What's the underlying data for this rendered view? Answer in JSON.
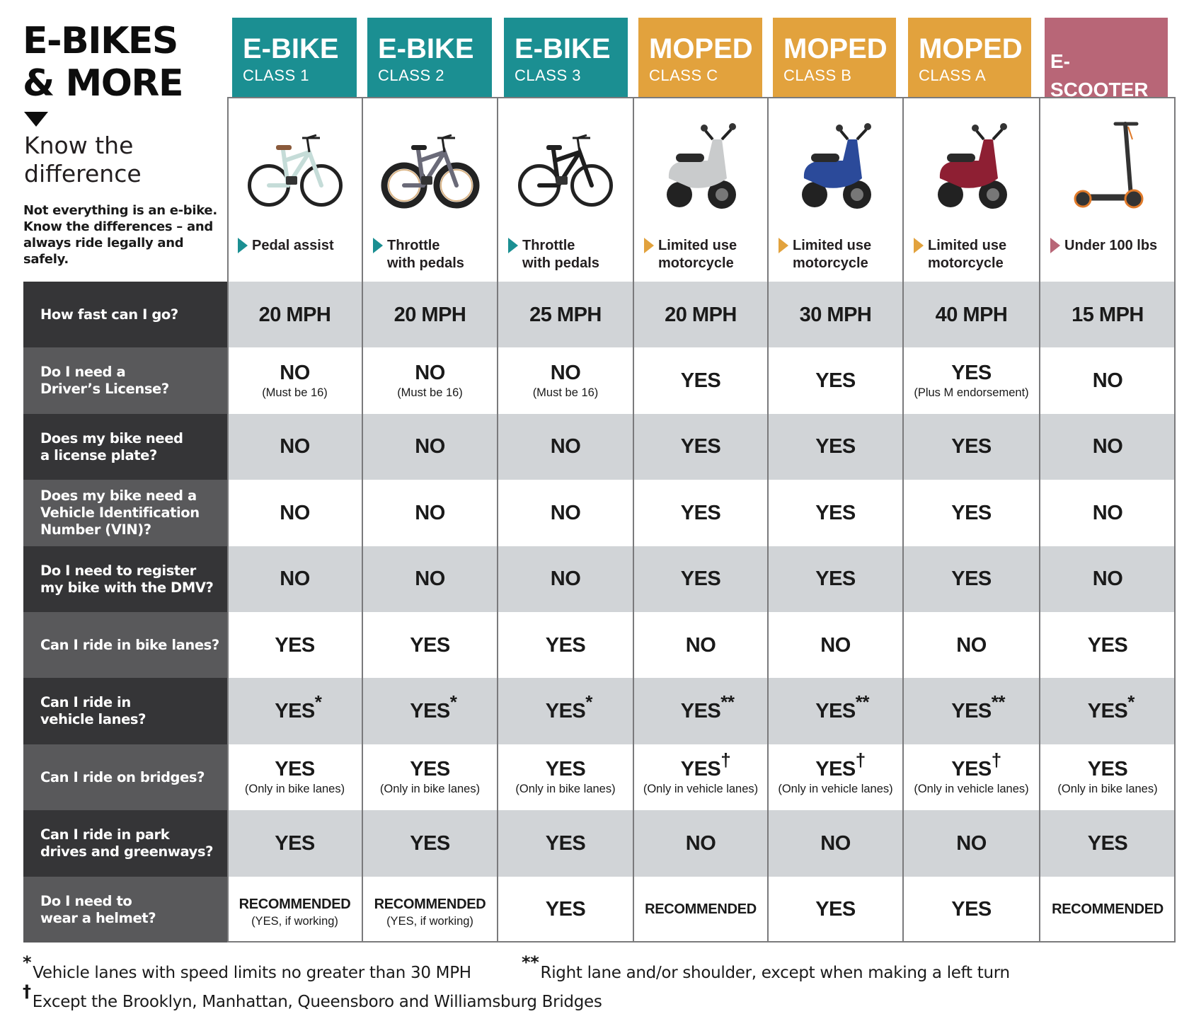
{
  "header": {
    "title_line1": "E-BIKES",
    "title_line2": "& MORE",
    "subtitle_line1": "Know the",
    "subtitle_line2": "difference",
    "intro_line1": "Not everything is an e-bike.",
    "intro_line2": "Know the differences – and",
    "intro_line3": "always ride legally and safely."
  },
  "colors": {
    "ebike": "#1b8f92",
    "moped": "#e2a23d",
    "escooter": "#b86677",
    "label_dark": "#353537",
    "label_light": "#59595b",
    "row_shade": "#d1d4d7",
    "grid_line": "#7a7a7c"
  },
  "columns": [
    {
      "main": "E-BIKE",
      "sub": "CLASS 1",
      "category": "ebike",
      "desc_line1": "Pedal assist",
      "desc_line2": "",
      "image": "city-ebike-icon"
    },
    {
      "main": "E-BIKE",
      "sub": "CLASS 2",
      "category": "ebike",
      "desc_line1": "Throttle",
      "desc_line2": "with pedals",
      "image": "folding-fat-tire-ebike-icon"
    },
    {
      "main": "E-BIKE",
      "sub": "CLASS 3",
      "category": "ebike",
      "desc_line1": "Throttle",
      "desc_line2": "with pedals",
      "image": "commuter-ebike-icon"
    },
    {
      "main": "MOPED",
      "sub": "CLASS C",
      "category": "moped",
      "desc_line1": "Limited use",
      "desc_line2": "motorcycle",
      "image": "silver-moped-icon"
    },
    {
      "main": "MOPED",
      "sub": "CLASS B",
      "category": "moped",
      "desc_line1": "Limited use",
      "desc_line2": "motorcycle",
      "image": "blue-moped-icon"
    },
    {
      "main": "MOPED",
      "sub": "CLASS A",
      "category": "moped",
      "desc_line1": "Limited use",
      "desc_line2": "motorcycle",
      "image": "red-moped-icon"
    },
    {
      "main": "E-SCOOTER",
      "sub": "",
      "category": "escooter",
      "desc_line1": "Under 100 lbs",
      "desc_line2": "",
      "image": "kick-scooter-icon"
    }
  ],
  "rows": [
    {
      "question_line1": "How fast can I go?",
      "question_line2": "",
      "question_line3": "",
      "cells": [
        {
          "main": "20 MPH"
        },
        {
          "main": "20 MPH"
        },
        {
          "main": "25 MPH"
        },
        {
          "main": "20 MPH"
        },
        {
          "main": "30 MPH"
        },
        {
          "main": "40 MPH"
        },
        {
          "main": "15 MPH"
        }
      ]
    },
    {
      "question_line1": "Do I need a",
      "question_line2": "Driver’s  License?",
      "question_line3": "",
      "cells": [
        {
          "main": "NO",
          "note": "(Must be 16)"
        },
        {
          "main": "NO",
          "note": "(Must be 16)"
        },
        {
          "main": "NO",
          "note": "(Must be 16)"
        },
        {
          "main": "YES"
        },
        {
          "main": "YES"
        },
        {
          "main": "YES",
          "note": "(Plus M endorsement)"
        },
        {
          "main": "NO"
        }
      ]
    },
    {
      "question_line1": "Does my bike need",
      "question_line2": "a license plate?",
      "question_line3": "",
      "cells": [
        {
          "main": "NO"
        },
        {
          "main": "NO"
        },
        {
          "main": "NO"
        },
        {
          "main": "YES"
        },
        {
          "main": "YES"
        },
        {
          "main": "YES"
        },
        {
          "main": "NO"
        }
      ]
    },
    {
      "question_line1": "Does my bike need a",
      "question_line2": "Vehicle Identification",
      "question_line3": "Number (VIN)?",
      "cells": [
        {
          "main": "NO"
        },
        {
          "main": "NO"
        },
        {
          "main": "NO"
        },
        {
          "main": "YES"
        },
        {
          "main": "YES"
        },
        {
          "main": "YES"
        },
        {
          "main": "NO"
        }
      ]
    },
    {
      "question_line1": "Do I need to register",
      "question_line2": "my bike with the DMV?",
      "question_line3": "",
      "cells": [
        {
          "main": "NO"
        },
        {
          "main": "NO"
        },
        {
          "main": "NO"
        },
        {
          "main": "YES"
        },
        {
          "main": "YES"
        },
        {
          "main": "YES"
        },
        {
          "main": "NO"
        }
      ]
    },
    {
      "question_line1": "Can I ride in bike lanes?",
      "question_line2": "",
      "question_line3": "",
      "cells": [
        {
          "main": "YES"
        },
        {
          "main": "YES"
        },
        {
          "main": "YES"
        },
        {
          "main": "NO"
        },
        {
          "main": "NO"
        },
        {
          "main": "NO"
        },
        {
          "main": "YES"
        }
      ]
    },
    {
      "question_line1": "Can I ride in",
      "question_line2": "vehicle lanes?",
      "question_line3": "",
      "cells": [
        {
          "main": "YES",
          "sup": "*"
        },
        {
          "main": "YES",
          "sup": "*"
        },
        {
          "main": "YES",
          "sup": "*"
        },
        {
          "main": "YES",
          "sup": "**"
        },
        {
          "main": "YES",
          "sup": "**"
        },
        {
          "main": "YES",
          "sup": "**"
        },
        {
          "main": "YES",
          "sup": "*"
        }
      ]
    },
    {
      "question_line1": "Can I ride on bridges?",
      "question_line2": "",
      "question_line3": "",
      "cells": [
        {
          "main": "YES",
          "note": "(Only in bike lanes)"
        },
        {
          "main": "YES",
          "note": "(Only in bike lanes)"
        },
        {
          "main": "YES",
          "note": "(Only in bike lanes)"
        },
        {
          "main": "YES",
          "sup": "†",
          "note": "(Only in vehicle lanes)"
        },
        {
          "main": "YES",
          "sup": "†",
          "note": "(Only in vehicle lanes)"
        },
        {
          "main": "YES",
          "sup": "†",
          "note": "(Only in vehicle lanes)"
        },
        {
          "main": "YES",
          "note": "(Only in bike lanes)"
        }
      ]
    },
    {
      "question_line1": "Can I ride in park",
      "question_line2": "drives and greenways?",
      "question_line3": "",
      "cells": [
        {
          "main": "YES"
        },
        {
          "main": "YES"
        },
        {
          "main": "YES"
        },
        {
          "main": "NO"
        },
        {
          "main": "NO"
        },
        {
          "main": "NO"
        },
        {
          "main": "YES"
        }
      ]
    },
    {
      "question_line1": "Do I need to",
      "question_line2": "wear a helmet?",
      "question_line3": "",
      "cells": [
        {
          "main": "RECOMMENDED",
          "note": "(YES, if working)",
          "small": true
        },
        {
          "main": "RECOMMENDED",
          "note": "(YES, if working)",
          "small": true
        },
        {
          "main": "YES"
        },
        {
          "main": "RECOMMENDED",
          "small": true
        },
        {
          "main": "YES"
        },
        {
          "main": "YES"
        },
        {
          "main": "RECOMMENDED",
          "small": true
        }
      ]
    }
  ],
  "footnotes": [
    {
      "mark": "*",
      "text": "Vehicle lanes with speed limits no greater than 30 MPH"
    },
    {
      "mark": "**",
      "text": "Right lane and/or shoulder, except when making a left turn"
    },
    {
      "mark": "†",
      "text": "Except the Brooklyn, Manhattan, Queensboro and Williamsburg Bridges"
    }
  ]
}
